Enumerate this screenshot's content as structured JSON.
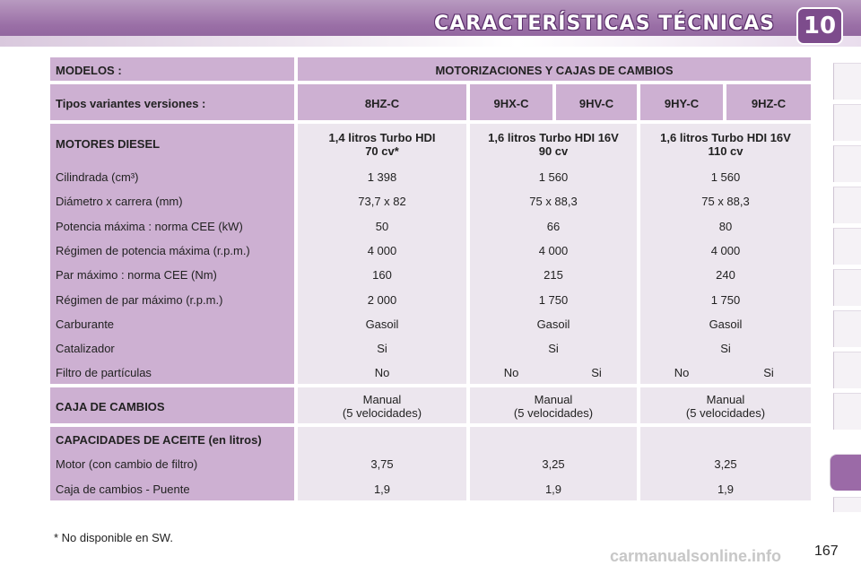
{
  "header": {
    "title": "CARACTERÍSTICAS TÉCNICAS",
    "chapter": "10"
  },
  "table": {
    "models_label": "MODELOS :",
    "models_value": "MOTORIZACIONES Y CAJAS DE CAMBIOS",
    "variants_label": "Tipos variantes versiones :",
    "variants": [
      "8HZ-C",
      "9HX-C",
      "9HV-C",
      "9HY-C",
      "9HZ-C"
    ],
    "engines_label": "MOTORES DIESEL",
    "engines": [
      {
        "line1": "1,4 litros Turbo HDI",
        "line2": "70 cv*"
      },
      {
        "line1": "1,6 litros Turbo HDI 16V",
        "line2": "90 cv"
      },
      {
        "line1": "1,6 litros Turbo HDI 16V",
        "line2": "110 cv"
      }
    ],
    "rows": [
      {
        "label": "Cilindrada (cm³)",
        "v": [
          "1 398",
          "1 560",
          "1 560"
        ]
      },
      {
        "label": "Diámetro x carrera (mm)",
        "v": [
          "73,7 x 82",
          "75 x 88,3",
          "75 x 88,3"
        ]
      },
      {
        "label": "Potencia máxima : norma CEE (kW)",
        "v": [
          "50",
          "66",
          "80"
        ]
      },
      {
        "label": "Régimen de potencia máxima (r.p.m.)",
        "v": [
          "4 000",
          "4 000",
          "4 000"
        ]
      },
      {
        "label": "Par máximo : norma CEE (Nm)",
        "v": [
          "160",
          "215",
          "240"
        ]
      },
      {
        "label": "Régimen de par máximo (r.p.m.)",
        "v": [
          "2 000",
          "1 750",
          "1 750"
        ]
      },
      {
        "label": "Carburante",
        "v": [
          "Gasoil",
          "Gasoil",
          "Gasoil"
        ]
      },
      {
        "label": "Catalizador",
        "v": [
          "Si",
          "Si",
          "Si"
        ]
      }
    ],
    "filter_label": "Filtro de partículas",
    "filter_values": [
      "No",
      "No",
      "Si",
      "No",
      "Si"
    ],
    "gearbox_label": "CAJA DE CAMBIOS",
    "gearbox": [
      {
        "line1": "Manual",
        "line2": "(5 velocidades)"
      },
      {
        "line1": "Manual",
        "line2": "(5 velocidades)"
      },
      {
        "line1": "Manual",
        "line2": "(5 velocidades)"
      }
    ],
    "oil_label": "CAPACIDADES DE ACEITE (en litros)",
    "oil_rows": [
      {
        "label": "Motor (con cambio de filtro)",
        "v": [
          "3,75",
          "3,25",
          "3,25"
        ]
      },
      {
        "label": "Caja de cambios - Puente",
        "v": [
          "1,9",
          "1,9",
          "1,9"
        ]
      }
    ]
  },
  "footnote": "* No disponible en SW.",
  "page_number": "167",
  "watermark": "carmanualsonline.info"
}
